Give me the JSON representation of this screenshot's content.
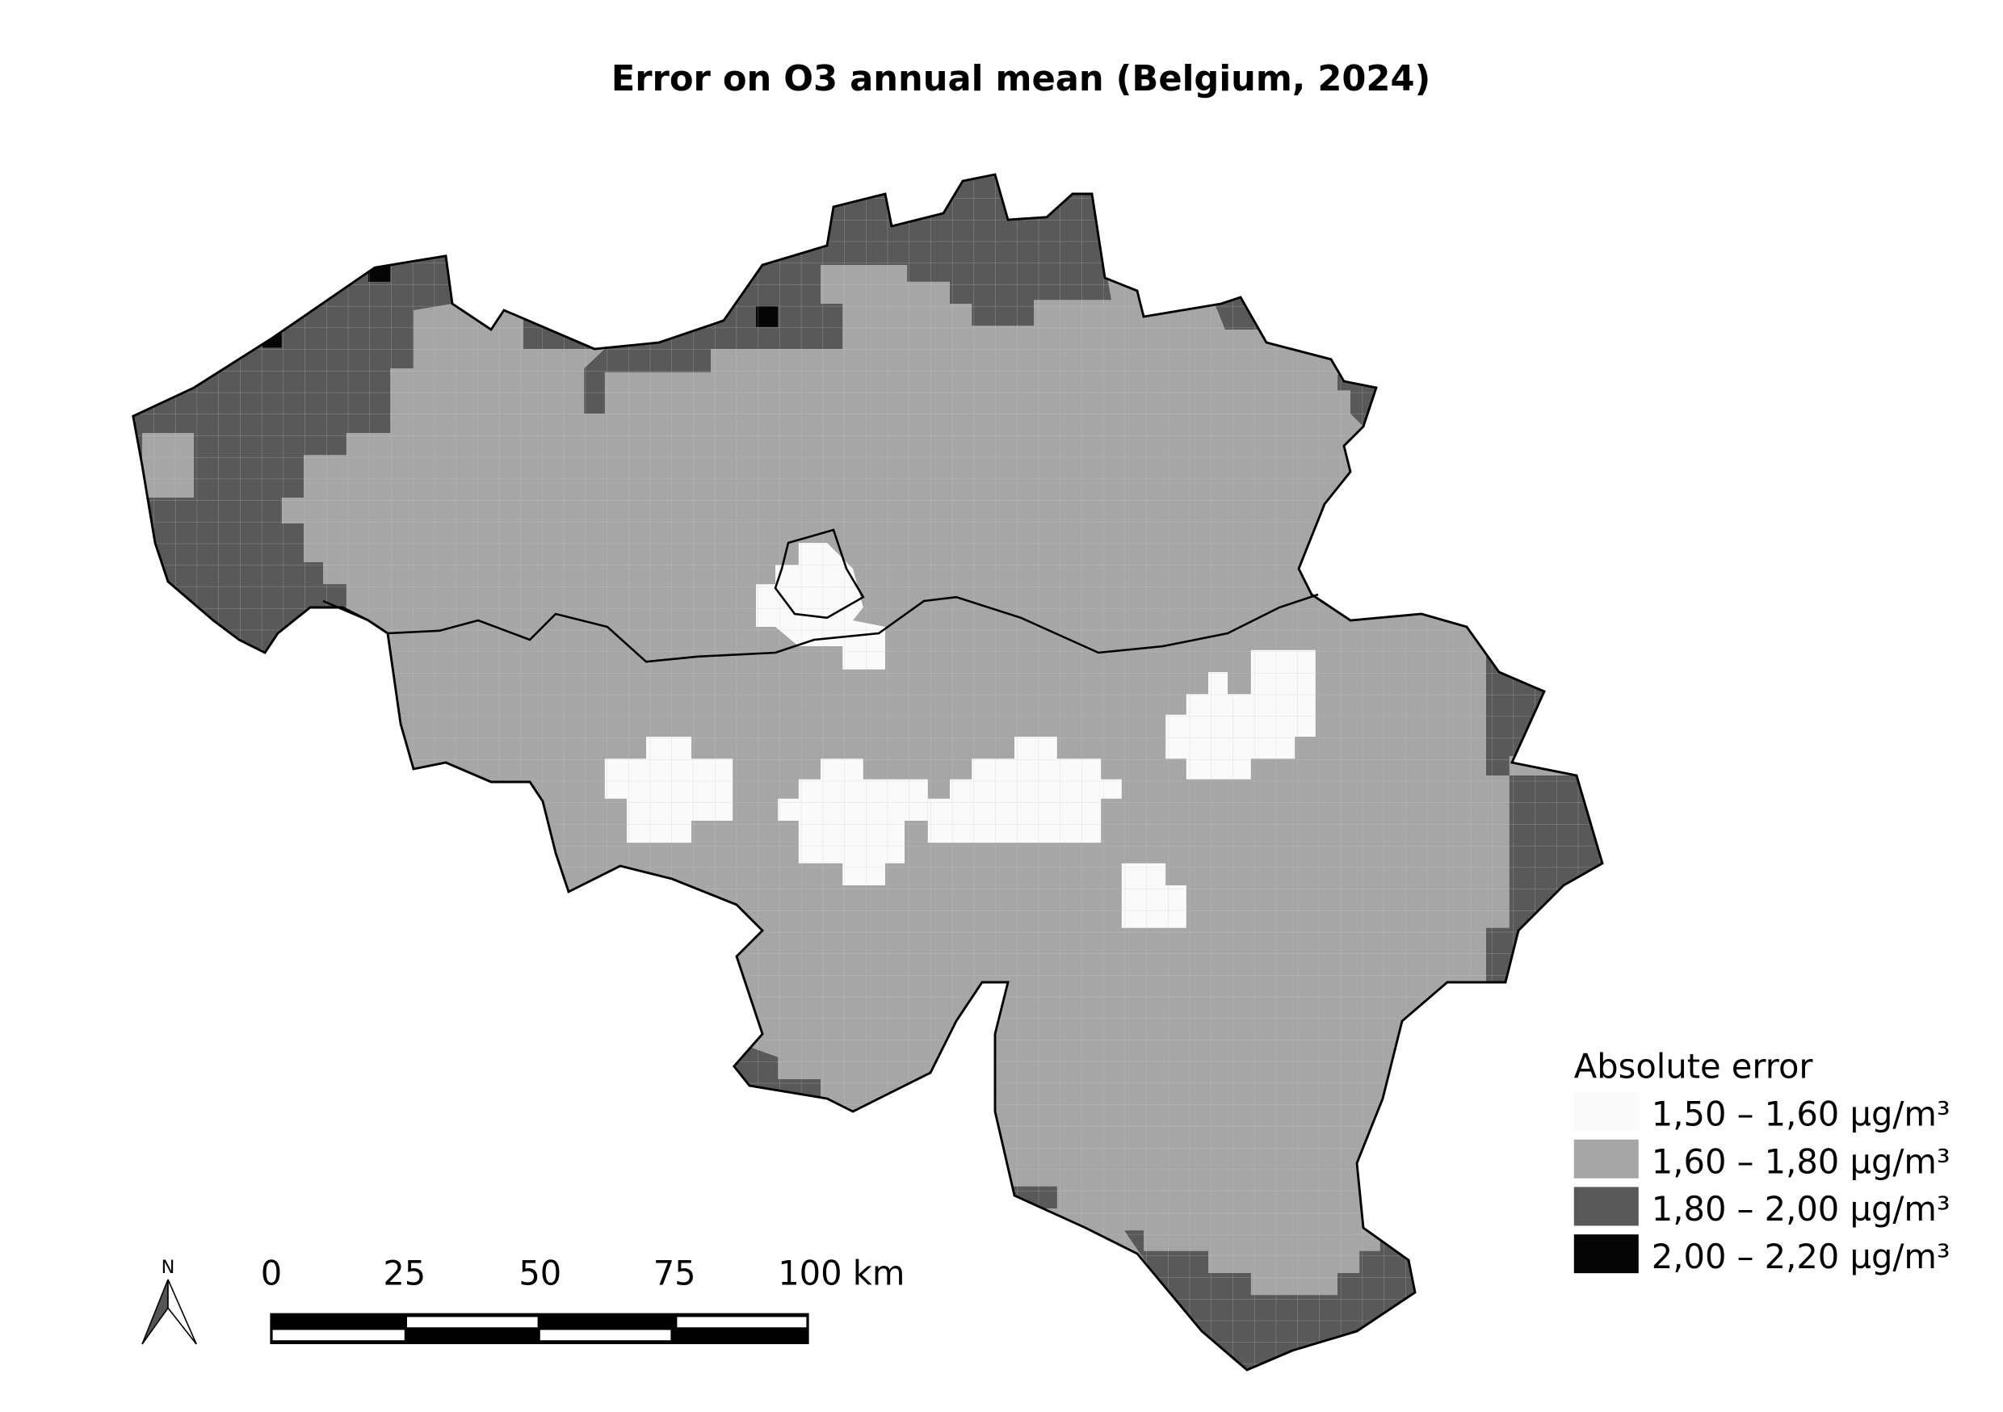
{
  "title": "Error on O3 annual mean (Belgium, 2024)",
  "legend": {
    "title": "Absolute error",
    "placement": "bottom-right",
    "items": [
      {
        "label": "1,50 – 1,60 µg/m³",
        "color": "#fafafa"
      },
      {
        "label": "1,60 – 1,80 µg/m³",
        "color": "#a6a6a6"
      },
      {
        "label": "1,80 – 2,00 µg/m³",
        "color": "#595959"
      },
      {
        "label": "2,00 – 2,20 µg/m³",
        "color": "#050505"
      }
    ]
  },
  "scale_bar": {
    "ticks": [
      "0",
      "25",
      "50",
      "75",
      "100 km"
    ]
  },
  "north_arrow": {
    "label": "N"
  }
}
